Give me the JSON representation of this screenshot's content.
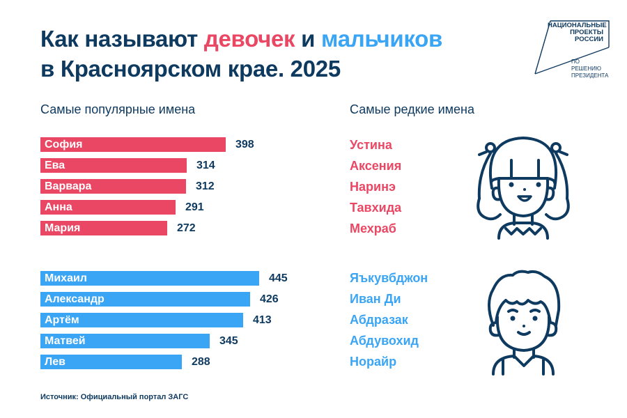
{
  "header": {
    "title_part1": "Как называют ",
    "title_girls": "девочек",
    "title_part2": " и ",
    "title_boys": "мальчиков",
    "title_line2": "в Красноярском крае. 2025"
  },
  "logo": {
    "line1": "НАЦИОНАЛЬНЫЕ",
    "line2": "ПРОЕКТЫ",
    "line3": "РОССИИ",
    "line4": "ПО РЕШЕНИЮ",
    "line5": "ПРЕЗИДЕНТА"
  },
  "popular_heading": "Самые популярные имена",
  "rare_heading": "Самые редкие имена",
  "rare_girls": [
    "Устина",
    "Аксения",
    "Наринэ",
    "Тавхида",
    "Мехраб"
  ],
  "rare_boys": [
    "Яъкувбджон",
    "Иван Ди",
    "Абдразак",
    "Абдувохид",
    "Норайр"
  ],
  "icons": {
    "girl": "girl-face-icon",
    "boy": "boy-face-icon"
  },
  "colors": {
    "girls": "#ea4764",
    "boys": "#3aa5f4",
    "text": "#0f3a60"
  },
  "source": "Источник: Официальный портал ЗАГС",
  "chart_data": [
    {
      "type": "bar",
      "orientation": "horizontal",
      "title": "Самые популярные имена — девочки",
      "categories": [
        "София",
        "Ева",
        "Варвара",
        "Анна",
        "Мария"
      ],
      "values": [
        398,
        314,
        312,
        291,
        272
      ],
      "value_labels": [
        "398",
        "314",
        "312",
        "291",
        "272"
      ],
      "color": "#ea4764",
      "xlabel": "",
      "ylabel": "",
      "grid": false
    },
    {
      "type": "bar",
      "orientation": "horizontal",
      "title": "Самые популярные имена — мальчики",
      "categories": [
        "Михаил",
        "Александр",
        "Артём",
        "Матвей",
        "Лев"
      ],
      "values": [
        445,
        426,
        413,
        345,
        288
      ],
      "value_labels": [
        "445",
        "426",
        "413",
        "345",
        "288"
      ],
      "color": "#3aa5f4",
      "xlabel": "",
      "ylabel": "",
      "grid": false
    }
  ]
}
